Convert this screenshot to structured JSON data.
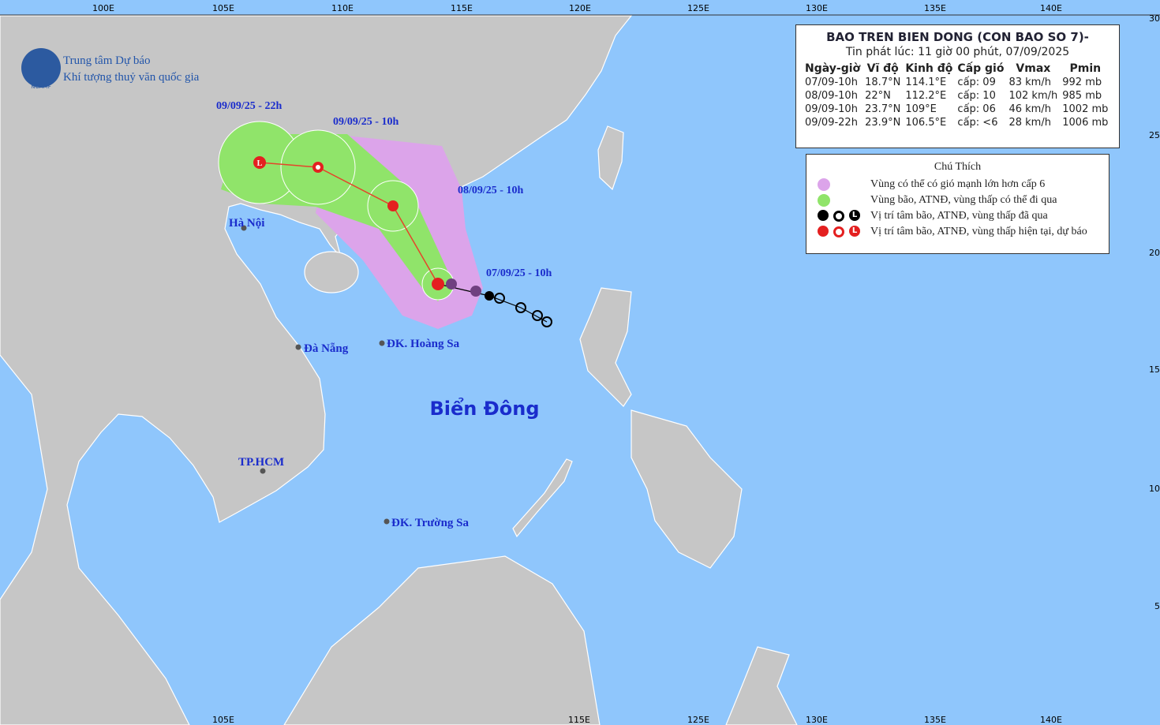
{
  "header": {
    "org_line1": "Trung tâm Dự báo",
    "org_line2": "Khí tượng thuỷ văn quốc gia",
    "logo_text": "NCHMF"
  },
  "bulletin": {
    "title": "BAO TREN BIEN DONG (CON BAO SO 7)-",
    "issued": "Tin phát lúc: 11 giờ 00 phút, 07/09/2025",
    "columns": [
      "Ngày-giờ",
      "Vĩ độ",
      "Kinh độ",
      "Cấp gió",
      "Vmax",
      "Pmin"
    ],
    "rows": [
      [
        "07/09-10h",
        "18.7°N",
        "114.1°E",
        "cấp: 09",
        "83 km/h",
        "992 mb"
      ],
      [
        "08/09-10h",
        "22°N",
        "112.2°E",
        "cấp: 10",
        "102 km/h",
        "985 mb"
      ],
      [
        "09/09-10h",
        "23.7°N",
        "109°E",
        "cấp: 06",
        "46 km/h",
        "1002 mb"
      ],
      [
        "09/09-22h",
        "23.9°N",
        "106.5°E",
        "cấp: <6",
        "28 km/h",
        "1006 mb"
      ]
    ]
  },
  "legend": {
    "title": "Chú Thích",
    "symbol_letter": "L",
    "items": [
      "Vùng có thể có gió mạnh lớn hơn cấp 6",
      "Vùng bão, ATNĐ, vùng thấp có thể đi qua",
      "Vị trí tâm bão, ATNĐ, vùng thấp đã qua",
      "Vị trí tâm bão, ATNĐ, vùng thấp hiện tại, dự báo"
    ]
  },
  "map": {
    "lon_labels_top": [
      "100E",
      "105E",
      "110E",
      "115E",
      "120E",
      "125E",
      "130E",
      "135E",
      "140E"
    ],
    "lon_labels_bottom": [
      "105E",
      "115E",
      "125E",
      "130E",
      "135E",
      "140E"
    ],
    "lat_labels": [
      "30",
      "25",
      "20",
      "15",
      "10",
      "5"
    ],
    "places": [
      "Hà Nội",
      "Đà Nẵng",
      "ĐK. Hoàng Sa",
      "TP.HCM",
      "ĐK. Trường Sa"
    ],
    "track_labels": [
      "09/09/25 - 22h",
      "09/09/25 - 10h",
      "08/09/25 - 10h",
      "07/09/25 - 10h"
    ],
    "sea_label": "Biển Đông"
  }
}
